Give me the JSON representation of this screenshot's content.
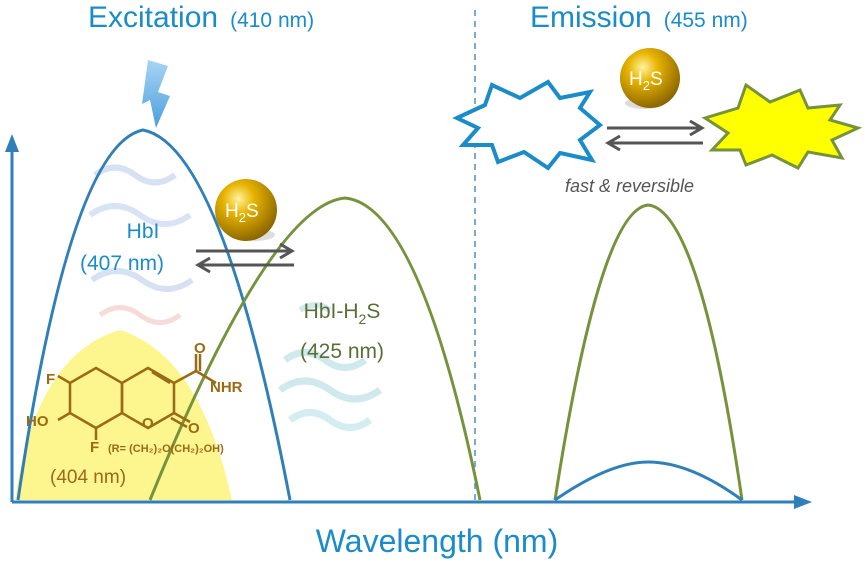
{
  "colors": {
    "blue": "#2f7fb8",
    "green": "#76933c",
    "yellow": "#fdf488",
    "burst": "#ffff00",
    "title": "#1a8cc8"
  },
  "header": {
    "excitation": "Excitation",
    "excitation_wl": "(410 nm)",
    "emission": "Emission",
    "emission_wl": "(455 nm)"
  },
  "probe": {
    "name": "HbI",
    "wl": "(407 nm)"
  },
  "complex": {
    "name_prefix": "HbI-H",
    "name_sub": "2",
    "name_suffix": "S",
    "wl": "(425 nm)"
  },
  "dye": {
    "group_o": "O",
    "group_nhr": "NHR",
    "group_f1": "F",
    "group_f2": "F",
    "group_ho": "HO",
    "ring_o1": "O",
    "ring_o2": "O",
    "r_def": "(R= (CH₂)₂O(CH₂)₂OH)",
    "wl": "(404 nm)"
  },
  "badge": {
    "prefix": "H",
    "sub": "2",
    "suffix": "S"
  },
  "emission_note": "fast & reversible",
  "axis": {
    "xlabel": "Wavelength (nm)"
  },
  "icons": {
    "lightning": "lightning-bolt-icon",
    "arrows": "reversible-arrows-icon",
    "burst": "starburst-icon"
  }
}
